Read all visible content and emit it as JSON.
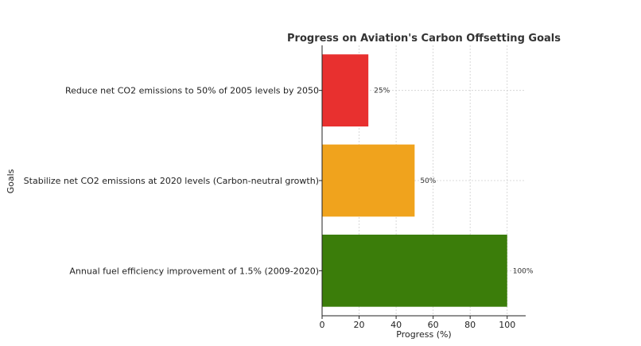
{
  "chart_data": {
    "type": "bar",
    "orientation": "horizontal",
    "title": "Progress on Aviation's Carbon Offsetting Goals",
    "xlabel": "Progress (%)",
    "ylabel": "Goals",
    "xlim": [
      0,
      110
    ],
    "xticks": [
      0,
      20,
      40,
      60,
      80,
      100
    ],
    "grid": true,
    "categories": [
      "Annual fuel efficiency improvement of 1.5% (2009-2020)",
      "Stabilize net CO2 emissions at 2020 levels (Carbon-neutral growth)",
      "Reduce net CO2 emissions to 50% of 2005 levels by 2050"
    ],
    "values": [
      100,
      50,
      25
    ],
    "data_labels": [
      "100%",
      "50%",
      "25%"
    ],
    "colors": [
      "#3b7d0a",
      "#f0a31d",
      "#e8302f"
    ]
  }
}
